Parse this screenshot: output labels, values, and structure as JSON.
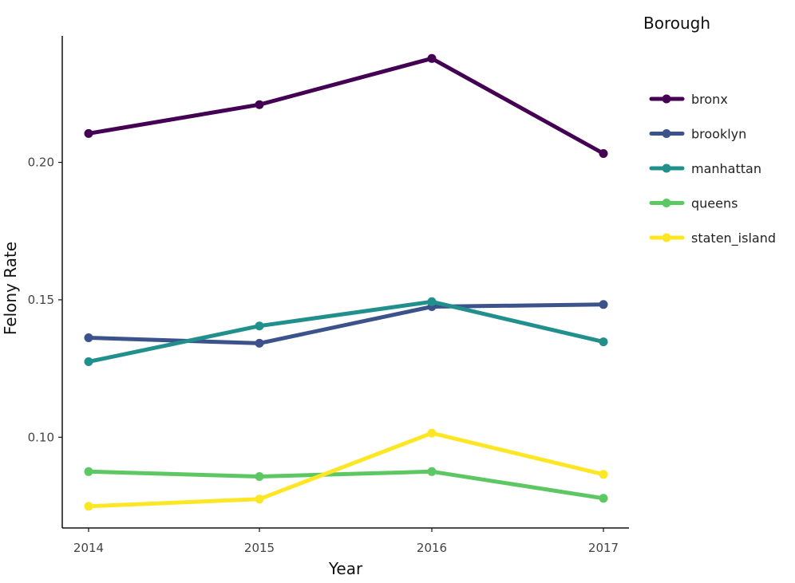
{
  "chart_data": {
    "type": "line",
    "xlabel": "Year",
    "ylabel": "Felony Rate",
    "x": [
      "2014",
      "2015",
      "2016",
      "2017"
    ],
    "ylim": [
      0.067,
      0.246
    ],
    "yticks": [
      "0.10",
      "0.15",
      "0.20"
    ],
    "grid": false,
    "legend_title": "Borough",
    "legend_position": "right",
    "series": [
      {
        "name": "bronx",
        "color": "#440154",
        "values": [
          0.2105,
          0.221,
          0.2378,
          0.2032
        ]
      },
      {
        "name": "brooklyn",
        "color": "#3b528b",
        "values": [
          0.1362,
          0.1342,
          0.1475,
          0.1483
        ]
      },
      {
        "name": "manhattan",
        "color": "#21908c",
        "values": [
          0.1275,
          0.1405,
          0.1493,
          0.1347
        ]
      },
      {
        "name": "queens",
        "color": "#5dc863",
        "values": [
          0.0875,
          0.0857,
          0.0875,
          0.0778
        ]
      },
      {
        "name": "staten_island",
        "color": "#fde725",
        "values": [
          0.0749,
          0.0775,
          0.1015,
          0.0865
        ]
      }
    ]
  }
}
